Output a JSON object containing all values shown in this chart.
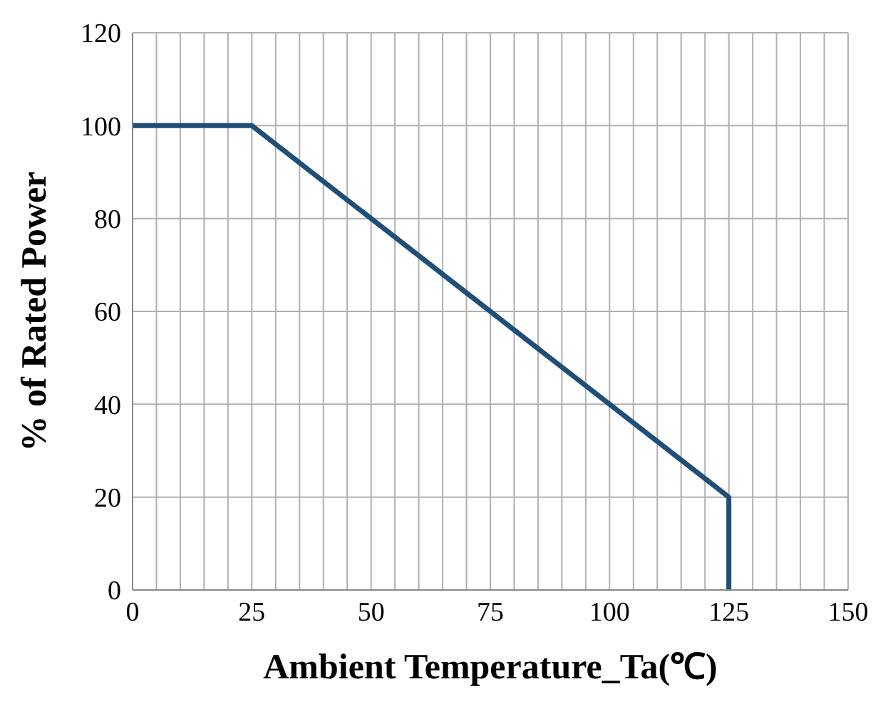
{
  "chart_data": {
    "type": "line",
    "xlabel": "Ambient  Temperature_Ta(℃)",
    "ylabel": "% of Rated Power",
    "x": [
      0,
      25,
      125,
      125
    ],
    "series": [
      {
        "color": "#1f4e79",
        "values": [
          100,
          100,
          20,
          0
        ]
      }
    ],
    "xlim": [
      0,
      150
    ],
    "xticks": [
      0,
      {
        "value": 5,
        "label": null
      },
      {
        "value": 10,
        "label": null
      },
      {
        "value": 15,
        "label": null
      },
      {
        "value": 20,
        "label": null
      },
      25,
      {
        "value": 30,
        "label": null
      },
      {
        "value": 35,
        "label": null
      },
      {
        "value": 40,
        "label": null
      },
      {
        "value": 45,
        "label": null
      },
      50,
      {
        "value": 55,
        "label": null
      },
      {
        "value": 60,
        "label": null
      },
      {
        "value": 65,
        "label": null
      },
      {
        "value": 70,
        "label": null
      },
      75,
      {
        "value": 80,
        "label": null
      },
      {
        "value": 85,
        "label": null
      },
      {
        "value": 90,
        "label": null
      },
      {
        "value": 95,
        "label": null
      },
      100,
      {
        "value": 105,
        "label": null
      },
      {
        "value": 110,
        "label": null
      },
      {
        "value": 115,
        "label": null
      },
      {
        "value": 120,
        "label": null
      },
      125,
      {
        "value": 130,
        "label": null
      },
      {
        "value": 135,
        "label": null
      },
      {
        "value": 140,
        "label": null
      },
      {
        "value": 145,
        "label": null
      },
      150
    ],
    "ylim": [
      0,
      120
    ],
    "yticks": [
      0,
      20,
      40,
      60,
      80,
      100,
      120
    ],
    "grid": true,
    "marker": "none",
    "line_style": "solid"
  }
}
